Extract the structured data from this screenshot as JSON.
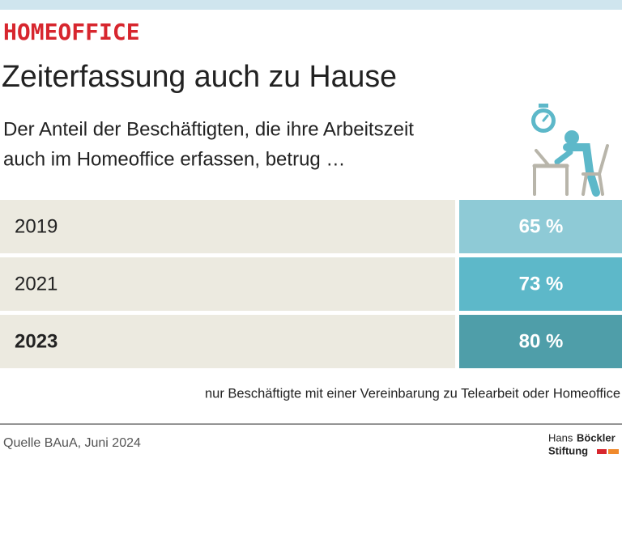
{
  "header": {
    "kicker": "HOMEOFFICE",
    "title": "Zeiterfassung auch zu Hause",
    "subtitle_lines": [
      "Der Anteil der Beschäftigten, die ihre Arbeitszeit",
      "auch im Homeoffice erfassen, betrug …"
    ]
  },
  "table": {
    "rows": [
      [
        "2019",
        "65 %"
      ],
      [
        "2021",
        "73 %"
      ],
      [
        "2023",
        "80 %"
      ]
    ]
  },
  "note": "nur Beschäftigte mit einer Vereinbarung zu Telearbeit oder Homeoffice",
  "source": "Quelle BAuA, Juni 2024",
  "logo": {
    "first": "Hans",
    "second": "Böckler",
    "third": "Stiftung"
  }
}
